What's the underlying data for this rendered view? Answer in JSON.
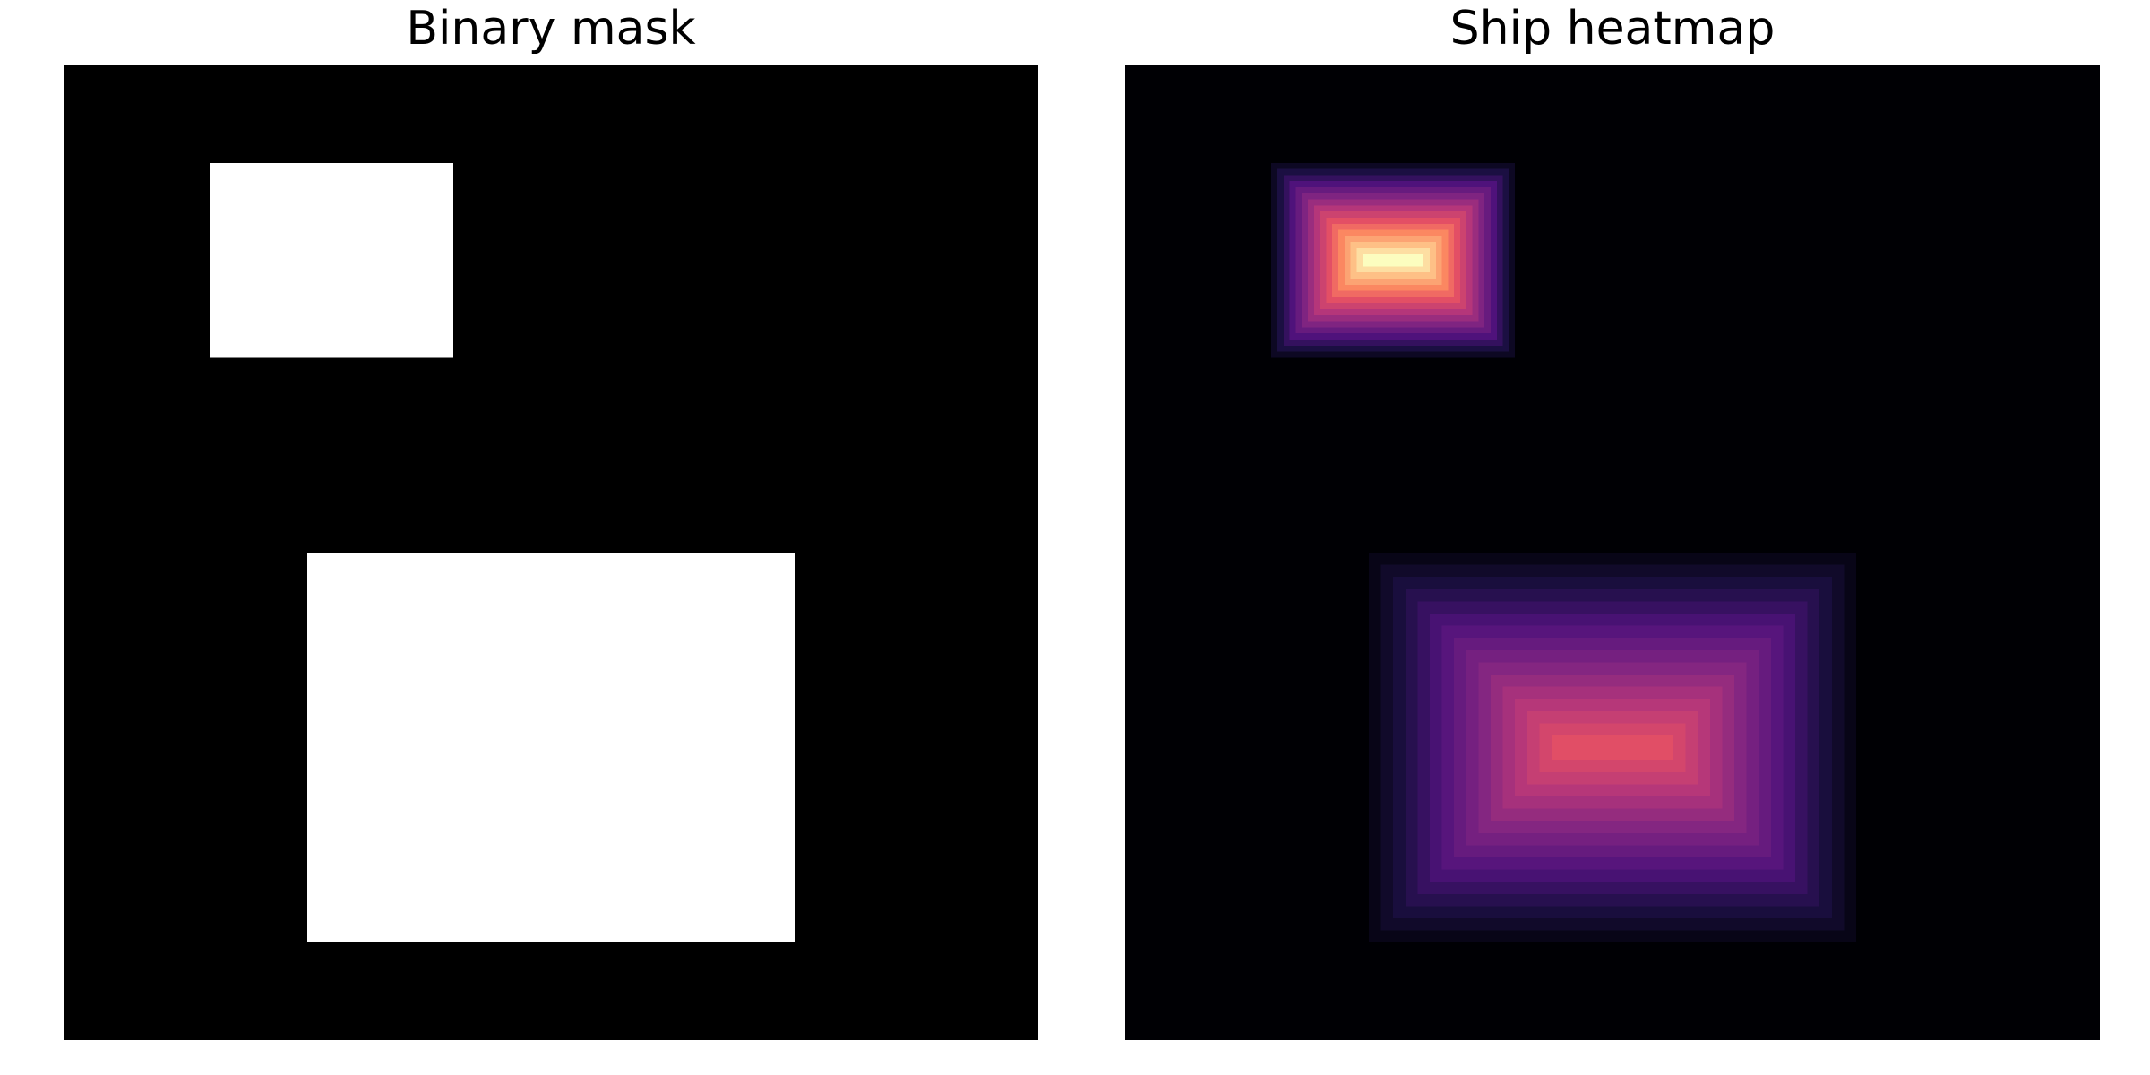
{
  "chart_data": [
    {
      "type": "heatmap",
      "title": "Binary mask",
      "colormap": "gray",
      "background_value": 0,
      "grid": false,
      "axes_visible": false,
      "grid_size": [
        100,
        100
      ],
      "regions": [
        {
          "x": [
            15,
            40
          ],
          "y": [
            10,
            30
          ],
          "value": 1
        },
        {
          "x": [
            25,
            75
          ],
          "y": [
            50,
            90
          ],
          "value": 1
        }
      ]
    },
    {
      "type": "heatmap",
      "title": "Ship heatmap",
      "colormap": "magma",
      "background_value": 0,
      "grid": false,
      "axes_visible": false,
      "grid_size": [
        100,
        100
      ],
      "vmin": 0,
      "vmax": 1,
      "levels": 16,
      "regions": [
        {
          "x": [
            15,
            40
          ],
          "y": [
            10,
            30
          ],
          "peak": 1.0,
          "falloff": "pyramid"
        },
        {
          "x": [
            25,
            75
          ],
          "y": [
            50,
            90
          ],
          "peak": 0.62,
          "falloff": "pyramid"
        }
      ]
    }
  ]
}
